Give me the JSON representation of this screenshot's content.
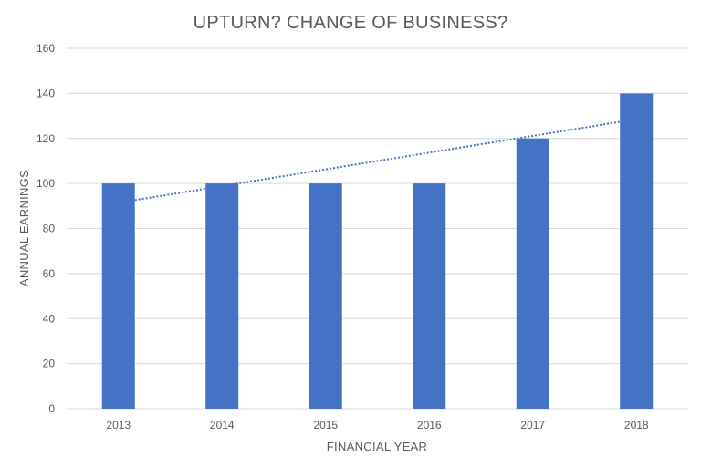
{
  "chart_data": {
    "type": "bar",
    "title": "UPTURN? CHANGE OF BUSINESS?",
    "xlabel": "FINANCIAL YEAR",
    "ylabel": "ANNUAL EARNINGS",
    "categories": [
      "2013",
      "2014",
      "2015",
      "2016",
      "2017",
      "2018"
    ],
    "series": [
      {
        "values": [
          100,
          100,
          100,
          100,
          120,
          140
        ]
      }
    ],
    "trendline": {
      "type": "linear",
      "style": "dotted"
    },
    "ylim": [
      0,
      160
    ],
    "yticks": [
      "0",
      "20",
      "40",
      "60",
      "80",
      "100",
      "120",
      "140",
      "160"
    ],
    "grid": true,
    "legend": false,
    "colors": {
      "bar": "#4472c4",
      "trend": "#4472c4",
      "text": "#595959",
      "grid": "#d9d9d9"
    }
  }
}
